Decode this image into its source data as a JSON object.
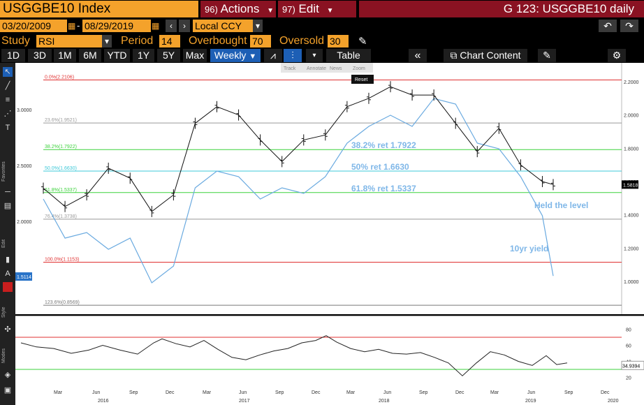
{
  "header": {
    "ticker": "USGGBE10 Index",
    "actions_num": "96)",
    "actions_label": "Actions",
    "edit_num": "97)",
    "edit_label": "Edit",
    "window_title": "G 123: USGGBE10 daily"
  },
  "dates": {
    "start": "03/20/2009",
    "end": "08/29/2019",
    "currency": "Local CCY"
  },
  "study": {
    "study_label": "Study",
    "study_value": "RSI",
    "period_label": "Period",
    "period_value": "14",
    "overbought_label": "Overbought",
    "overbought_value": "70",
    "oversold_label": "Oversold",
    "oversold_value": "30"
  },
  "periods": [
    "1D",
    "3D",
    "1M",
    "6M",
    "YTD",
    "1Y",
    "5Y",
    "Max"
  ],
  "frequency": "Weekly",
  "toolbar": {
    "table_label": "Table",
    "chart_content_label": "Chart Content"
  },
  "sidebar": {
    "favorites_label": "Favorites",
    "edit_label": "Edit",
    "style_label": "Style",
    "modes_label": "Modes"
  },
  "chart_tools": [
    "Track",
    "Annotate",
    "News",
    "Zoom"
  ],
  "chart_reset": "Reset",
  "colors": {
    "accent_orange": "#f4a22b",
    "title_red": "#8a1222",
    "select_blue": "#1d5fb5",
    "yield_line": "#6aaae0",
    "annotation": "#7fb7e8"
  },
  "chart_data": {
    "type": "line",
    "series": [
      {
        "name": "USGGBE10 Index",
        "kind": "ohlc-weekly",
        "axis": "right",
        "x": [
          "2015-09",
          "2015-11",
          "2016-01",
          "2016-03",
          "2016-05",
          "2016-07",
          "2016-09",
          "2016-11",
          "2017-01",
          "2017-03",
          "2017-05",
          "2017-07",
          "2017-09",
          "2017-11",
          "2018-01",
          "2018-03",
          "2018-05",
          "2018-07",
          "2018-09",
          "2018-11",
          "2019-01",
          "2019-03",
          "2019-05",
          "2019-07",
          "2019-08"
        ],
        "values": [
          1.56,
          1.45,
          1.52,
          1.68,
          1.62,
          1.42,
          1.52,
          1.95,
          2.05,
          2.0,
          1.85,
          1.72,
          1.85,
          1.88,
          2.05,
          2.1,
          2.17,
          2.12,
          2.12,
          1.95,
          1.78,
          1.92,
          1.7,
          1.6,
          1.5818
        ]
      },
      {
        "name": "10yr yield",
        "kind": "line",
        "axis": "left",
        "x": [
          "2015-09",
          "2015-11",
          "2016-01",
          "2016-03",
          "2016-05",
          "2016-07",
          "2016-09",
          "2016-11",
          "2017-01",
          "2017-03",
          "2017-05",
          "2017-07",
          "2017-09",
          "2017-11",
          "2018-01",
          "2018-03",
          "2018-05",
          "2018-07",
          "2018-09",
          "2018-11",
          "2019-01",
          "2019-03",
          "2019-05",
          "2019-07",
          "2019-08"
        ],
        "values": [
          2.2,
          1.85,
          1.9,
          1.75,
          1.85,
          1.45,
          1.6,
          2.3,
          2.45,
          2.4,
          2.2,
          2.3,
          2.25,
          2.4,
          2.7,
          2.85,
          2.95,
          2.85,
          3.1,
          3.05,
          2.7,
          2.65,
          2.4,
          2.05,
          1.5114
        ]
      }
    ],
    "right_axis": {
      "ticks": [
        "2.2000",
        "2.0000",
        "1.8000",
        "1.6000",
        "1.4000",
        "1.2000",
        "1.0000"
      ],
      "last_value": "1.5818"
    },
    "left_axis": {
      "ticks": [
        "3.0000",
        "2.5000",
        "2.0000"
      ],
      "last_value": "1.5114"
    },
    "fib_levels": [
      {
        "label": "0.0%(2.2106)",
        "value": 2.2106,
        "color": "#e03030"
      },
      {
        "label": "23.6%(1.9521)",
        "value": 1.9521,
        "color": "#999999"
      },
      {
        "label": "38.2%(1.7922)",
        "value": 1.7922,
        "color": "#3cd23c"
      },
      {
        "label": "50.0%(1.6630)",
        "value": 1.663,
        "color": "#3cc8d8"
      },
      {
        "label": "61.8%(1.5337)",
        "value": 1.5337,
        "color": "#3cd23c"
      },
      {
        "label": "76.4%(1.3738)",
        "value": 1.3738,
        "color": "#999999"
      },
      {
        "label": "100.0%(1.1153)",
        "value": 1.1153,
        "color": "#e03030"
      },
      {
        "label": "123.6%(0.8569)",
        "value": 0.8569,
        "color": "#777777"
      }
    ],
    "annotations": [
      "38.2% ret 1.7922",
      "50% ret 1.6630",
      "61.8% ret 1.5337",
      "Held the level",
      "10yr yield"
    ],
    "rsi": {
      "ticks": [
        "80",
        "60",
        "40",
        "20"
      ],
      "last_value": "34.9394",
      "overbought": 70,
      "oversold": 30
    },
    "x_month_ticks": [
      "Mar",
      "Jun",
      "Sep",
      "Dec",
      "Mar",
      "Jun",
      "Sep",
      "Dec",
      "Mar",
      "Jun",
      "Sep",
      "Dec",
      "Mar",
      "Jun",
      "Sep",
      "Dec"
    ],
    "x_year_ticks": [
      "2016",
      "2017",
      "2018",
      "2019",
      "2020"
    ]
  }
}
